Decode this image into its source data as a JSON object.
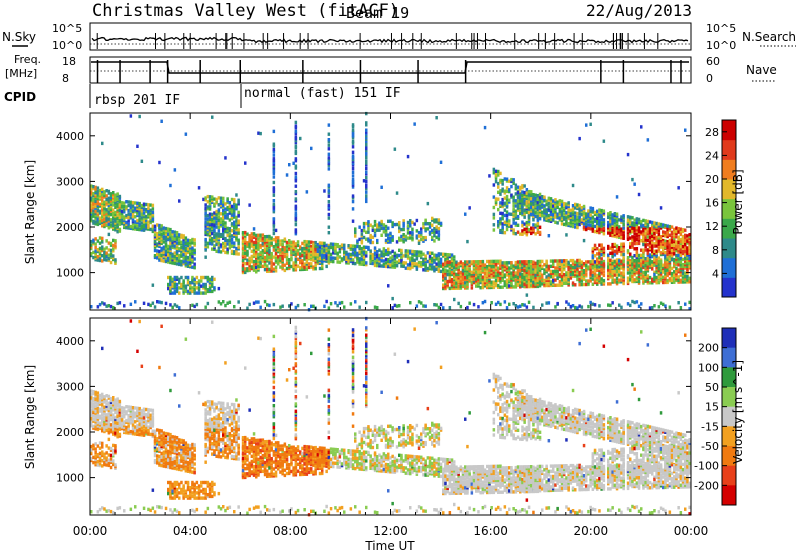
{
  "header": {
    "title": "Christmas Valley West (fitACF)",
    "beam": "Beam 19",
    "date": "22/Aug/2013"
  },
  "nsky_panel": {
    "left_label": "N.Sky",
    "right_label": "N.Search",
    "left_ticks": [
      "10^5",
      "10^0"
    ],
    "right_ticks": [
      "10^5",
      "10^0"
    ]
  },
  "freq_panel": {
    "left_label_line1": "Freq.",
    "left_label_line2": "[MHz]",
    "right_label": "Nave",
    "left_ticks": [
      "18",
      "8"
    ],
    "right_ticks": [
      "60",
      "0"
    ]
  },
  "cpid": {
    "label": "CPID",
    "segments": [
      {
        "label": "rbsp 201 IF",
        "start_hour": 0
      },
      {
        "label": "normal (fast) 151 IF",
        "start_hour": 6.0
      }
    ]
  },
  "colors": {
    "power_scale": [
      "#2433cc",
      "#1f6fd6",
      "#2e8a8a",
      "#3aa84a",
      "#79c43c",
      "#e2b82a",
      "#f07d1f",
      "#e03a1c",
      "#cc0000"
    ],
    "velocity_scale": [
      "#1f2fb8",
      "#3e6ed4",
      "#2f9a3c",
      "#8acc52",
      "#c8c8c8",
      "#f2a020",
      "#f07a10",
      "#e8401a",
      "#d40000"
    ]
  },
  "chart_data": [
    {
      "type": "heatmap",
      "name": "power",
      "ylabel": "Slant Range [km]",
      "yticks": [
        1000,
        2000,
        3000,
        4000
      ],
      "ylim": [
        180,
        4500
      ],
      "xlim_hours": [
        0,
        24
      ],
      "colorbar_label": "Power [dB]",
      "colorbar_ticks": [
        4,
        8,
        12,
        16,
        20,
        24,
        28
      ],
      "colorbar_range": [
        0,
        30
      ]
    },
    {
      "type": "heatmap",
      "name": "velocity",
      "ylabel": "Slant Range [km]",
      "yticks": [
        1000,
        2000,
        3000,
        4000
      ],
      "ylim": [
        180,
        4500
      ],
      "xlim_hours": [
        0,
        24
      ],
      "xticks": [
        "00:00",
        "04:00",
        "08:00",
        "12:00",
        "16:00",
        "20:00",
        "00:00"
      ],
      "xlabel": "Time UT",
      "colorbar_label": "Velocity [m s^-1]",
      "colorbar_ticks": [
        "200",
        "100",
        "50",
        "15",
        "-15",
        "-50",
        "-100",
        "-200"
      ]
    }
  ]
}
